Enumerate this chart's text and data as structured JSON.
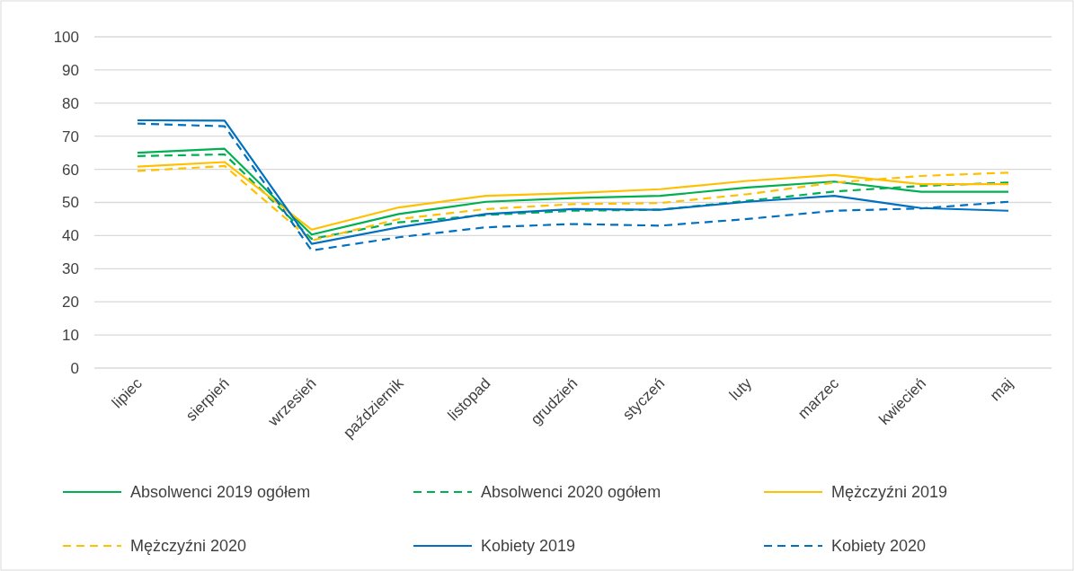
{
  "chart_data": {
    "type": "line",
    "categories": [
      "lipiec",
      "sierpień",
      "wrzesień",
      "październik",
      "listopad",
      "grudzień",
      "styczeń",
      "luty",
      "marzec",
      "kwiecień",
      "maj"
    ],
    "ylim": [
      0,
      100
    ],
    "yticks": [
      0,
      10,
      20,
      30,
      40,
      50,
      60,
      70,
      80,
      90,
      100
    ],
    "grid": "y",
    "legend": "bottom",
    "marker": "none",
    "series": [
      {
        "name": "Absolwenci 2019 ogółem",
        "color": "#00b050",
        "line_style": "solid",
        "values": [
          65,
          66.2,
          40.3,
          46.5,
          50.2,
          51.3,
          52,
          54.5,
          56.3,
          53.2,
          53.2
        ]
      },
      {
        "name": "Absolwenci 2020 ogółem",
        "color": "#00b050",
        "line_style": "dashed",
        "values": [
          64,
          64.5,
          39,
          44,
          46.2,
          47.5,
          47.8,
          50.5,
          53.3,
          55,
          56
        ]
      },
      {
        "name": "Mężczyźni 2019",
        "color": "#ffc000",
        "line_style": "solid",
        "values": [
          60.8,
          62.2,
          41.8,
          48.5,
          52,
          52.8,
          54,
          56.5,
          58.3,
          55.5,
          55.5
        ]
      },
      {
        "name": "Mężczyźni 2020",
        "color": "#ffc000",
        "line_style": "dashed",
        "values": [
          59.5,
          61,
          38.5,
          45,
          48,
          49.5,
          49.8,
          52.5,
          56,
          58,
          59
        ]
      },
      {
        "name": "Kobiety 2019",
        "color": "#0070c0",
        "line_style": "solid",
        "values": [
          74.8,
          74.7,
          37.5,
          42.5,
          46.5,
          48,
          47.8,
          50.2,
          52,
          48.3,
          47.5
        ]
      },
      {
        "name": "Kobiety 2020",
        "color": "#0070c0",
        "line_style": "dashed",
        "values": [
          73.8,
          73,
          35.5,
          39.5,
          42.5,
          43.5,
          43,
          45,
          47.5,
          48.2,
          50.2
        ]
      }
    ]
  }
}
